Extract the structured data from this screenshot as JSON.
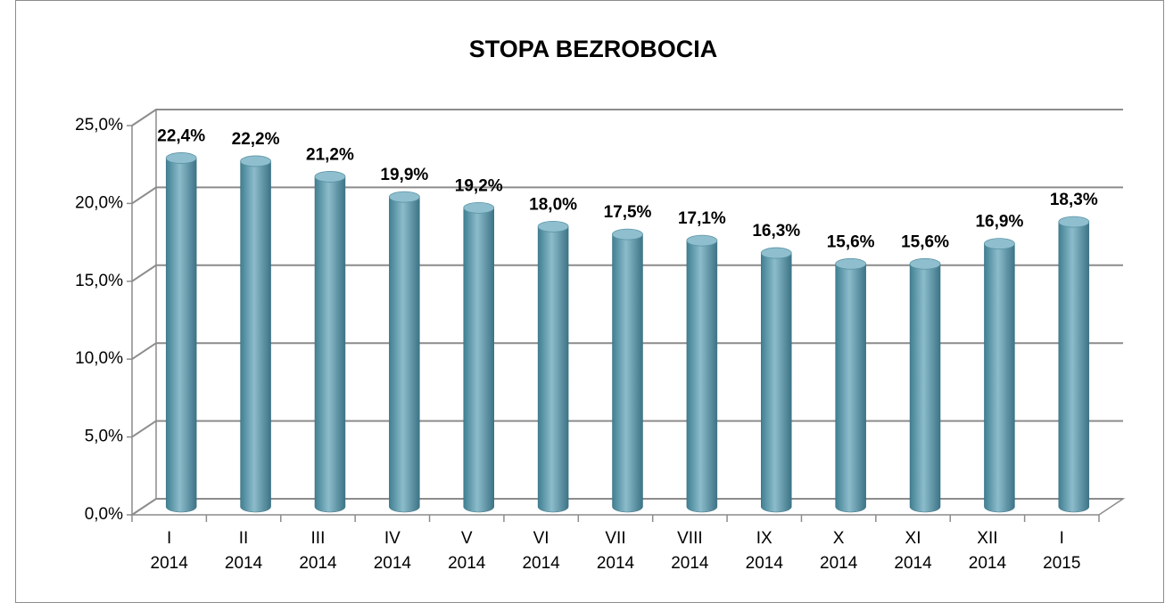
{
  "chart_data": {
    "type": "bar",
    "title": "STOPA BEZROBOCIA",
    "categories": [
      [
        "I",
        "2014"
      ],
      [
        "II",
        "2014"
      ],
      [
        "III",
        "2014"
      ],
      [
        "IV",
        "2014"
      ],
      [
        "V",
        "2014"
      ],
      [
        "VI",
        "2014"
      ],
      [
        "VII",
        "2014"
      ],
      [
        "VIII",
        "2014"
      ],
      [
        "IX",
        "2014"
      ],
      [
        "X",
        "2014"
      ],
      [
        "XI",
        "2014"
      ],
      [
        "XII",
        "2014"
      ],
      [
        "I",
        "2015"
      ]
    ],
    "values": [
      22.4,
      22.2,
      21.2,
      19.9,
      19.2,
      18.0,
      17.5,
      17.1,
      16.3,
      15.6,
      15.6,
      16.9,
      18.3
    ],
    "value_labels": [
      "22,4%",
      "22,2%",
      "21,2%",
      "19,9%",
      "19,2%",
      "18,0%",
      "17,5%",
      "17,1%",
      "16,3%",
      "15,6%",
      "15,6%",
      "16,9%",
      "18,3%"
    ],
    "color": "#6fa6b8",
    "ylim": [
      0,
      25
    ],
    "yticks": [
      {
        "value": 0,
        "label": "0,0%"
      },
      {
        "value": 5,
        "label": "5,0%"
      },
      {
        "value": 10,
        "label": "10,0%"
      },
      {
        "value": 15,
        "label": "15,0%"
      },
      {
        "value": 20,
        "label": "20,0%"
      },
      {
        "value": 25,
        "label": "25,0%"
      }
    ],
    "grid": true
  }
}
